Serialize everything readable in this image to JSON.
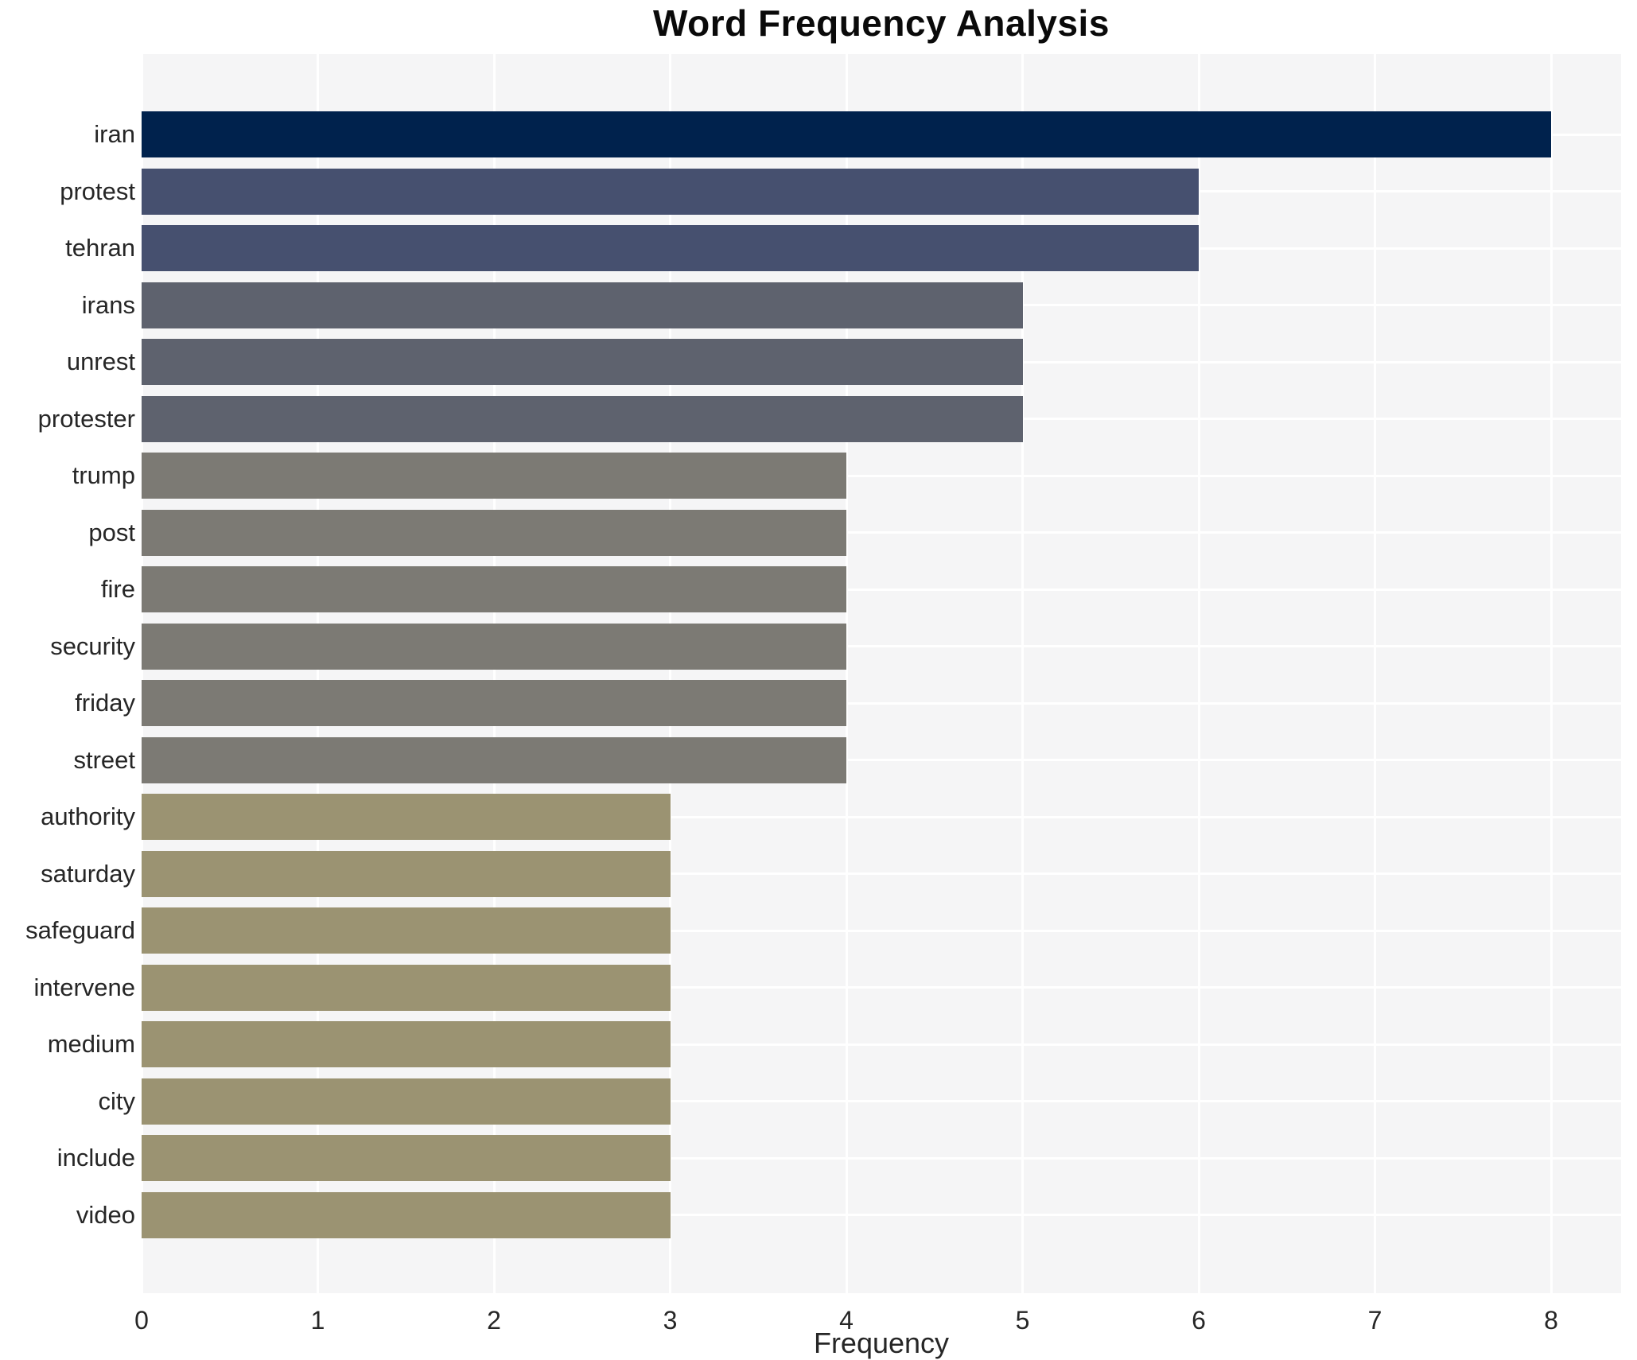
{
  "chart_data": {
    "type": "bar",
    "orientation": "horizontal",
    "title": "Word Frequency Analysis",
    "xlabel": "Frequency",
    "ylabel": "",
    "categories": [
      "iran",
      "protest",
      "tehran",
      "irans",
      "unrest",
      "protester",
      "trump",
      "post",
      "fire",
      "security",
      "friday",
      "street",
      "authority",
      "saturday",
      "safeguard",
      "intervene",
      "medium",
      "city",
      "include",
      "video"
    ],
    "values": [
      8,
      6,
      6,
      5,
      5,
      5,
      4,
      4,
      4,
      4,
      4,
      4,
      3,
      3,
      3,
      3,
      3,
      3,
      3,
      3
    ],
    "bar_colors": [
      "#00224d",
      "#46506f",
      "#46506f",
      "#5e626e",
      "#5e626e",
      "#5e626e",
      "#7c7a74",
      "#7c7a74",
      "#7c7a74",
      "#7c7a74",
      "#7c7a74",
      "#7c7a74",
      "#9b9372",
      "#9b9372",
      "#9b9372",
      "#9b9372",
      "#9b9372",
      "#9b9372",
      "#9b9372",
      "#9b9372"
    ],
    "x_ticks": [
      "0",
      "1",
      "2",
      "3",
      "4",
      "5",
      "6",
      "7",
      "8"
    ],
    "xlim": [
      0,
      8.4
    ],
    "grid": true,
    "legend": false,
    "plot_background": "#f5f5f6",
    "grid_color": "#ffffff",
    "text_color": "#262626"
  }
}
